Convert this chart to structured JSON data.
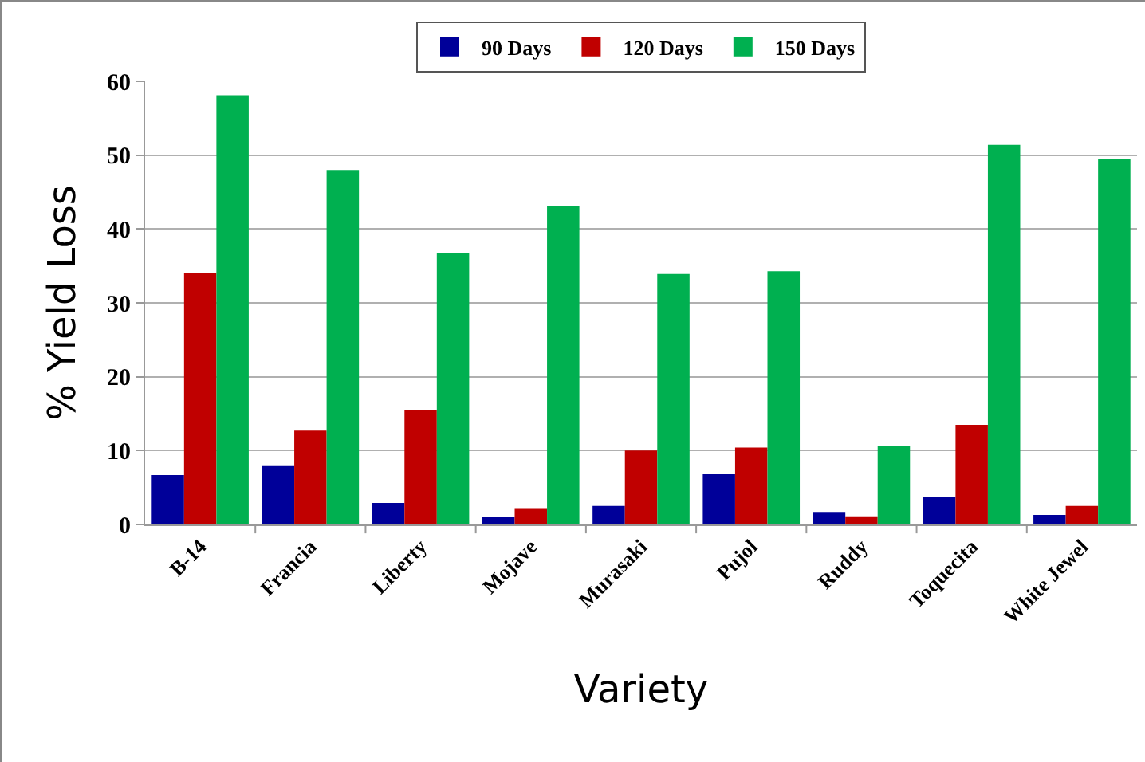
{
  "chart_data": {
    "type": "bar",
    "xlabel": "Variety",
    "ylabel": "% Yield Loss",
    "categories": [
      "B-14",
      "Francia",
      "Liberty",
      "Mojave",
      "Murasaki",
      "Pujol",
      "Ruddy",
      "Toquecita",
      "White Jewel"
    ],
    "series": [
      {
        "name": "90 Days",
        "color": "#000099",
        "values": [
          6.7,
          7.9,
          2.9,
          1.0,
          2.5,
          6.8,
          1.7,
          3.7,
          1.3
        ]
      },
      {
        "name": "120 Days",
        "color": "#c00000",
        "values": [
          34.0,
          12.7,
          15.5,
          2.2,
          10.0,
          10.4,
          1.1,
          13.5,
          2.5
        ]
      },
      {
        "name": "150 Days",
        "color": "#00b050",
        "values": [
          58.1,
          48.0,
          36.7,
          43.1,
          33.9,
          34.3,
          10.6,
          51.4,
          49.5
        ]
      }
    ],
    "ylim": [
      0,
      60
    ],
    "yticks": [
      0,
      10,
      20,
      30,
      40,
      50,
      60
    ],
    "grid": "y",
    "legend": "top"
  }
}
